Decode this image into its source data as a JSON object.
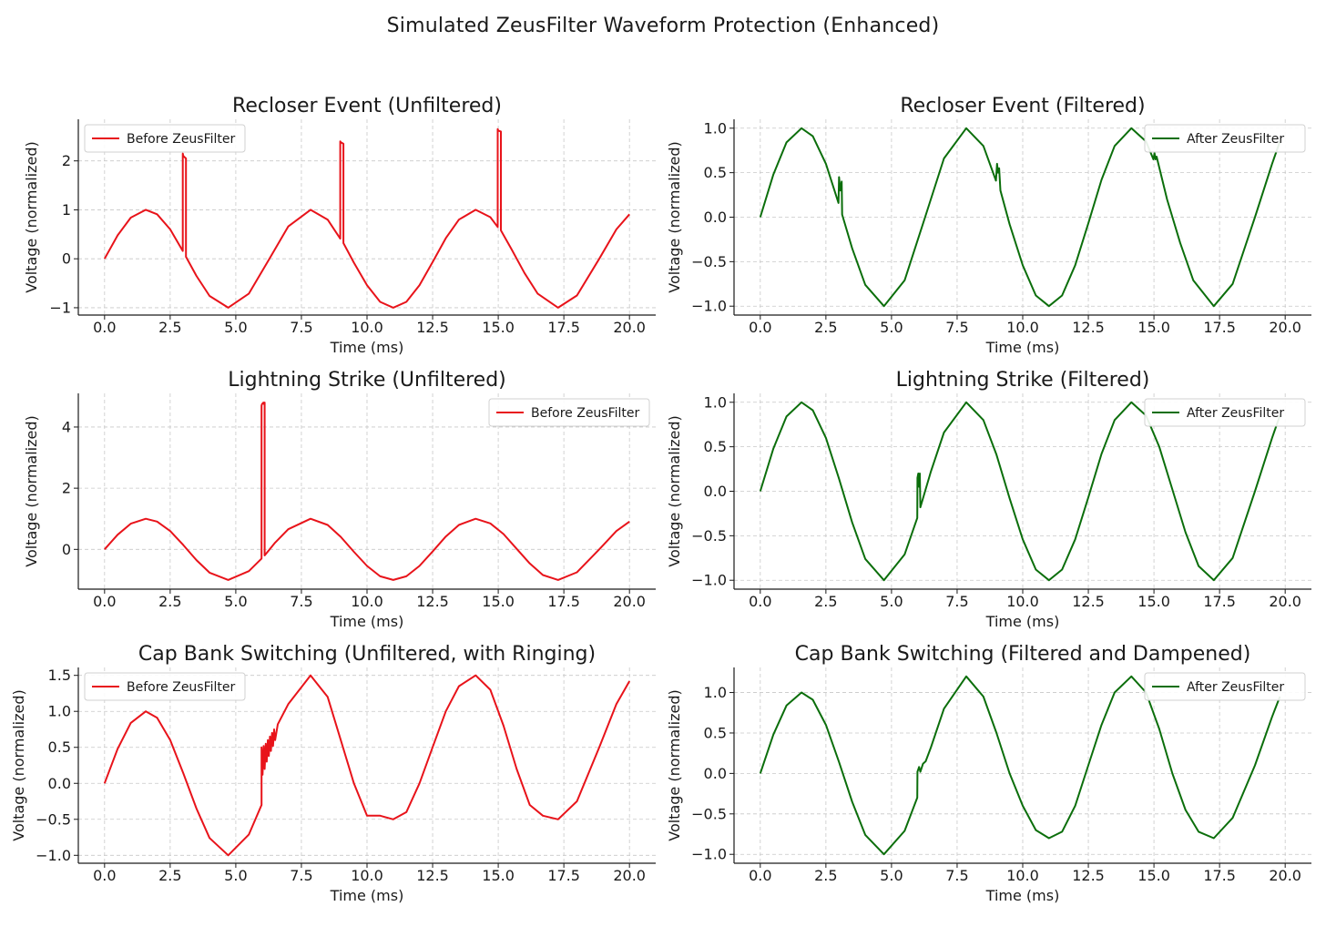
{
  "suptitle": "Simulated ZeusFilter Waveform Protection (Enhanced)",
  "colors": {
    "unfiltered": "#e8131a",
    "filtered": "#0b6e0b",
    "grid": "#c8c8c8"
  },
  "chart_data": [
    {
      "id": "recloser-unfiltered",
      "type": "line",
      "title": "Recloser Event (Unfiltered)",
      "xlabel": "Time (ms)",
      "ylabel": "Voltage (normalized)",
      "xlim": [
        -1,
        21
      ],
      "ylim": [
        -1.15,
        2.85
      ],
      "xticks": [
        "0.0",
        "2.5",
        "5.0",
        "7.5",
        "10.0",
        "12.5",
        "15.0",
        "17.5",
        "20.0"
      ],
      "yticks": [
        "−1",
        "0",
        "1",
        "2"
      ],
      "legend": {
        "label": "Before ZeusFilter",
        "position": "upper-left"
      },
      "grid": true,
      "color": "#e8131a",
      "series": [
        {
          "name": "Before ZeusFilter",
          "x": [
            0,
            0.5,
            1,
            1.57,
            2,
            2.5,
            2.98,
            2.98,
            3.0,
            3.1,
            3.1,
            3.5,
            4.0,
            4.71,
            5.5,
            6.28,
            7.0,
            7.85,
            8.5,
            8.98,
            8.98,
            9.0,
            9.1,
            9.1,
            9.5,
            10.0,
            10.5,
            11.0,
            11.5,
            12.0,
            12.5,
            13.0,
            13.5,
            14.14,
            14.7,
            14.98,
            14.98,
            15.0,
            15.1,
            15.1,
            15.5,
            16.0,
            16.5,
            17.28,
            18.0,
            18.85,
            19.5,
            20.0
          ],
          "y": [
            0,
            0.48,
            0.84,
            1.0,
            0.91,
            0.6,
            0.16,
            2.15,
            2.1,
            2.05,
            0.04,
            -0.35,
            -0.76,
            -1.0,
            -0.71,
            0.0,
            0.66,
            1.0,
            0.8,
            0.41,
            2.4,
            2.38,
            2.35,
            0.32,
            -0.08,
            -0.54,
            -0.88,
            -1.0,
            -0.88,
            -0.54,
            -0.07,
            0.42,
            0.8,
            1.0,
            0.85,
            0.65,
            2.65,
            2.62,
            2.6,
            0.58,
            0.2,
            -0.29,
            -0.71,
            -1.0,
            -0.75,
            0.0,
            0.6,
            0.91
          ]
        }
      ]
    },
    {
      "id": "recloser-filtered",
      "type": "line",
      "title": "Recloser Event (Filtered)",
      "xlabel": "Time (ms)",
      "ylabel": "Voltage (normalized)",
      "xlim": [
        -1,
        21
      ],
      "ylim": [
        -1.1,
        1.1
      ],
      "xticks": [
        "0.0",
        "2.5",
        "5.0",
        "7.5",
        "10.0",
        "12.5",
        "15.0",
        "17.5",
        "20.0"
      ],
      "yticks": [
        "−1.0",
        "−0.5",
        "0.0",
        "0.5",
        "1.0"
      ],
      "legend": {
        "label": "After ZeusFilter",
        "position": "upper-right"
      },
      "grid": true,
      "color": "#0b6e0b",
      "series": [
        {
          "name": "After ZeusFilter",
          "x": [
            0,
            0.5,
            1,
            1.57,
            2,
            2.5,
            2.98,
            3.0,
            3.05,
            3.1,
            3.12,
            3.5,
            4.0,
            4.71,
            5.5,
            6.28,
            7.0,
            7.85,
            8.5,
            8.98,
            9.02,
            9.06,
            9.1,
            9.15,
            9.5,
            10.0,
            10.5,
            11.0,
            11.5,
            12.0,
            12.5,
            13.0,
            13.5,
            14.14,
            14.7,
            14.98,
            15.02,
            15.06,
            15.1,
            15.5,
            16.0,
            16.5,
            17.28,
            18.0,
            18.85,
            19.5,
            19.8
          ],
          "y": [
            0,
            0.48,
            0.84,
            1.0,
            0.91,
            0.6,
            0.16,
            0.45,
            0.3,
            0.4,
            0.03,
            -0.35,
            -0.76,
            -1.0,
            -0.71,
            0.0,
            0.66,
            1.0,
            0.8,
            0.41,
            0.6,
            0.5,
            0.55,
            0.3,
            -0.08,
            -0.54,
            -0.88,
            -1.0,
            -0.88,
            -0.54,
            -0.07,
            0.42,
            0.8,
            1.0,
            0.85,
            0.65,
            0.72,
            0.65,
            0.68,
            0.2,
            -0.29,
            -0.71,
            -1.0,
            -0.75,
            0.0,
            0.6,
            0.85
          ]
        }
      ]
    },
    {
      "id": "lightning-unfiltered",
      "type": "line",
      "title": "Lightning Strike (Unfiltered)",
      "xlabel": "Time (ms)",
      "ylabel": "Voltage (normalized)",
      "xlim": [
        -1,
        21
      ],
      "ylim": [
        -1.3,
        5.1
      ],
      "xticks": [
        "0.0",
        "2.5",
        "5.0",
        "7.5",
        "10.0",
        "12.5",
        "15.0",
        "17.5",
        "20.0"
      ],
      "yticks": [
        "0",
        "2",
        "4"
      ],
      "legend": {
        "label": "Before ZeusFilter",
        "position": "upper-right"
      },
      "grid": true,
      "color": "#e8131a",
      "series": [
        {
          "name": "Before ZeusFilter",
          "x": [
            0,
            0.5,
            1,
            1.57,
            2,
            2.5,
            3.0,
            3.5,
            4.0,
            4.71,
            5.5,
            5.98,
            5.98,
            6.0,
            6.05,
            6.08,
            6.1,
            6.1,
            6.5,
            7.0,
            7.85,
            8.5,
            9.0,
            9.5,
            10.0,
            10.5,
            11.0,
            11.5,
            12.0,
            12.5,
            13.0,
            13.5,
            14.14,
            14.7,
            15.2,
            15.7,
            16.2,
            16.7,
            17.28,
            18.0,
            18.85,
            19.5,
            20.0
          ],
          "y": [
            0,
            0.48,
            0.84,
            1.0,
            0.91,
            0.6,
            0.14,
            -0.35,
            -0.76,
            -1.0,
            -0.71,
            -0.3,
            4.7,
            4.75,
            4.8,
            4.75,
            4.8,
            -0.2,
            0.22,
            0.66,
            1.0,
            0.8,
            0.41,
            -0.08,
            -0.54,
            -0.88,
            -1.0,
            -0.88,
            -0.54,
            -0.07,
            0.42,
            0.8,
            1.0,
            0.85,
            0.5,
            0.02,
            -0.46,
            -0.84,
            -1.0,
            -0.75,
            0.0,
            0.6,
            0.91
          ]
        }
      ]
    },
    {
      "id": "lightning-filtered",
      "type": "line",
      "title": "Lightning Strike (Filtered)",
      "xlabel": "Time (ms)",
      "ylabel": "Voltage (normalized)",
      "xlim": [
        -1,
        21
      ],
      "ylim": [
        -1.1,
        1.1
      ],
      "xticks": [
        "0.0",
        "2.5",
        "5.0",
        "7.5",
        "10.0",
        "12.5",
        "15.0",
        "17.5",
        "20.0"
      ],
      "yticks": [
        "−1.0",
        "−0.5",
        "0.0",
        "0.5",
        "1.0"
      ],
      "legend": {
        "label": "After ZeusFilter",
        "position": "upper-right"
      },
      "grid": true,
      "color": "#0b6e0b",
      "series": [
        {
          "name": "After ZeusFilter",
          "x": [
            0,
            0.5,
            1,
            1.57,
            2,
            2.5,
            3.0,
            3.5,
            4.0,
            4.71,
            5.5,
            5.98,
            5.99,
            6.02,
            6.05,
            6.08,
            6.1,
            6.5,
            7.0,
            7.85,
            8.5,
            9.0,
            9.5,
            10.0,
            10.5,
            11.0,
            11.5,
            12.0,
            12.5,
            13.0,
            13.5,
            14.14,
            14.7,
            15.2,
            15.7,
            16.2,
            16.7,
            17.28,
            18.0,
            18.85,
            19.5,
            19.8
          ],
          "y": [
            0,
            0.48,
            0.84,
            1.0,
            0.91,
            0.6,
            0.14,
            -0.35,
            -0.76,
            -1.0,
            -0.71,
            -0.3,
            0.15,
            0.2,
            0.05,
            0.2,
            -0.18,
            0.22,
            0.66,
            1.0,
            0.8,
            0.41,
            -0.08,
            -0.54,
            -0.88,
            -1.0,
            -0.88,
            -0.54,
            -0.07,
            0.42,
            0.8,
            1.0,
            0.85,
            0.5,
            0.02,
            -0.46,
            -0.84,
            -1.0,
            -0.75,
            0.0,
            0.6,
            0.85
          ]
        }
      ]
    },
    {
      "id": "capbank-unfiltered",
      "type": "line",
      "title": "Cap Bank Switching (Unfiltered, with Ringing)",
      "xlabel": "Time (ms)",
      "ylabel": "Voltage (normalized)",
      "xlim": [
        -1,
        21
      ],
      "ylim": [
        -1.11,
        1.61
      ],
      "xticks": [
        "0.0",
        "2.5",
        "5.0",
        "7.5",
        "10.0",
        "12.5",
        "15.0",
        "17.5",
        "20.0"
      ],
      "yticks": [
        "−1.0",
        "−0.5",
        "0.0",
        "0.5",
        "1.0",
        "1.5"
      ],
      "legend": {
        "label": "Before ZeusFilter",
        "position": "upper-left"
      },
      "grid": true,
      "color": "#e8131a",
      "series": [
        {
          "name": "Before ZeusFilter",
          "x": [
            0,
            0.5,
            1,
            1.57,
            2,
            2.5,
            3.0,
            3.5,
            4.0,
            4.71,
            5.5,
            5.98,
            5.98,
            6.02,
            6.06,
            6.1,
            6.14,
            6.18,
            6.22,
            6.26,
            6.3,
            6.34,
            6.38,
            6.42,
            6.46,
            6.5,
            6.6,
            7.0,
            7.85,
            8.5,
            9.0,
            9.5,
            10.0,
            10.5,
            11.0,
            11.5,
            12.0,
            12.5,
            13.0,
            13.5,
            14.14,
            14.7,
            15.2,
            15.7,
            16.2,
            16.7,
            17.28,
            18.0,
            18.85,
            19.5,
            20.0
          ],
          "y": [
            0,
            0.48,
            0.84,
            1.0,
            0.91,
            0.6,
            0.14,
            -0.35,
            -0.76,
            -1.0,
            -0.71,
            -0.3,
            0.5,
            0.12,
            0.52,
            0.2,
            0.55,
            0.3,
            0.6,
            0.38,
            0.65,
            0.45,
            0.7,
            0.52,
            0.75,
            0.6,
            0.82,
            1.1,
            1.5,
            1.2,
            0.6,
            0.0,
            -0.45,
            -0.45,
            -0.5,
            -0.4,
            0.0,
            0.5,
            1.0,
            1.35,
            1.5,
            1.3,
            0.8,
            0.2,
            -0.3,
            -0.45,
            -0.5,
            -0.25,
            0.5,
            1.1,
            1.42
          ]
        }
      ]
    },
    {
      "id": "capbank-filtered",
      "type": "line",
      "title": "Cap Bank Switching (Filtered and Dampened)",
      "xlabel": "Time (ms)",
      "ylabel": "Voltage (normalized)",
      "xlim": [
        -1,
        21
      ],
      "ylim": [
        -1.11,
        1.31
      ],
      "xticks": [
        "0.0",
        "2.5",
        "5.0",
        "7.5",
        "10.0",
        "12.5",
        "15.0",
        "17.5",
        "20.0"
      ],
      "yticks": [
        "−1.0",
        "−0.5",
        "0.0",
        "0.5",
        "1.0"
      ],
      "legend": {
        "label": "After ZeusFilter",
        "position": "upper-right"
      },
      "grid": true,
      "color": "#0b6e0b",
      "series": [
        {
          "name": "After ZeusFilter",
          "x": [
            0,
            0.5,
            1,
            1.57,
            2,
            2.5,
            3.0,
            3.5,
            4.0,
            4.71,
            5.5,
            5.98,
            5.99,
            6.05,
            6.1,
            6.2,
            6.3,
            6.5,
            7.0,
            7.85,
            8.5,
            9.0,
            9.5,
            10.0,
            10.5,
            11.0,
            11.5,
            12.0,
            12.5,
            13.0,
            13.5,
            14.14,
            14.7,
            15.2,
            15.7,
            16.2,
            16.7,
            17.28,
            18.0,
            18.85,
            19.5,
            19.8
          ],
          "y": [
            0,
            0.48,
            0.84,
            1.0,
            0.91,
            0.6,
            0.14,
            -0.35,
            -0.76,
            -1.0,
            -0.71,
            -0.3,
            0.02,
            0.08,
            0.02,
            0.12,
            0.15,
            0.32,
            0.8,
            1.2,
            0.95,
            0.5,
            0.0,
            -0.4,
            -0.7,
            -0.8,
            -0.72,
            -0.4,
            0.1,
            0.6,
            1.0,
            1.2,
            1.0,
            0.55,
            0.0,
            -0.45,
            -0.72,
            -0.8,
            -0.55,
            0.1,
            0.7,
            0.95
          ]
        }
      ]
    }
  ]
}
